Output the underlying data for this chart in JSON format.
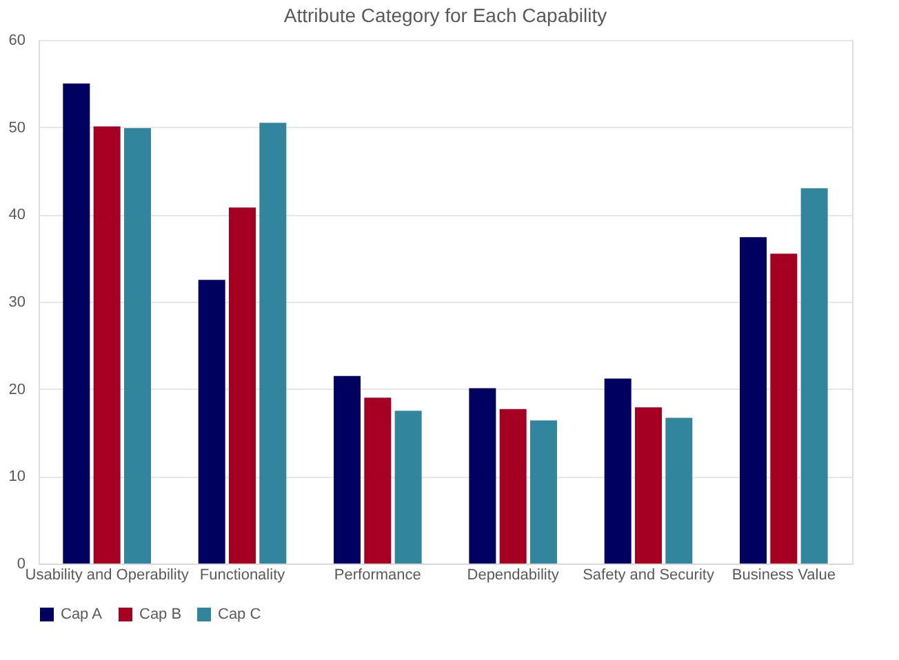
{
  "chart_data": {
    "type": "bar",
    "title": "Attribute Category for Each Capability",
    "categories": [
      "Usability and Operability",
      "Functionality",
      "Performance",
      "Dependability",
      "Safety and Security",
      "Business Value"
    ],
    "series": [
      {
        "name": "Cap A",
        "color": "#000060",
        "values": [
          55.0,
          32.5,
          21.5,
          20.1,
          21.2,
          37.4
        ]
      },
      {
        "name": "Cap B",
        "color": "#a50021",
        "values": [
          50.1,
          40.8,
          19.0,
          17.7,
          17.9,
          35.5
        ]
      },
      {
        "name": "Cap C",
        "color": "#31859c",
        "values": [
          49.9,
          50.5,
          17.5,
          16.4,
          16.7,
          43.0
        ]
      }
    ],
    "ylim": [
      0,
      60
    ],
    "yticks": [
      0,
      10,
      20,
      30,
      40,
      50,
      60
    ],
    "grid": "y",
    "legend": "bottom"
  }
}
